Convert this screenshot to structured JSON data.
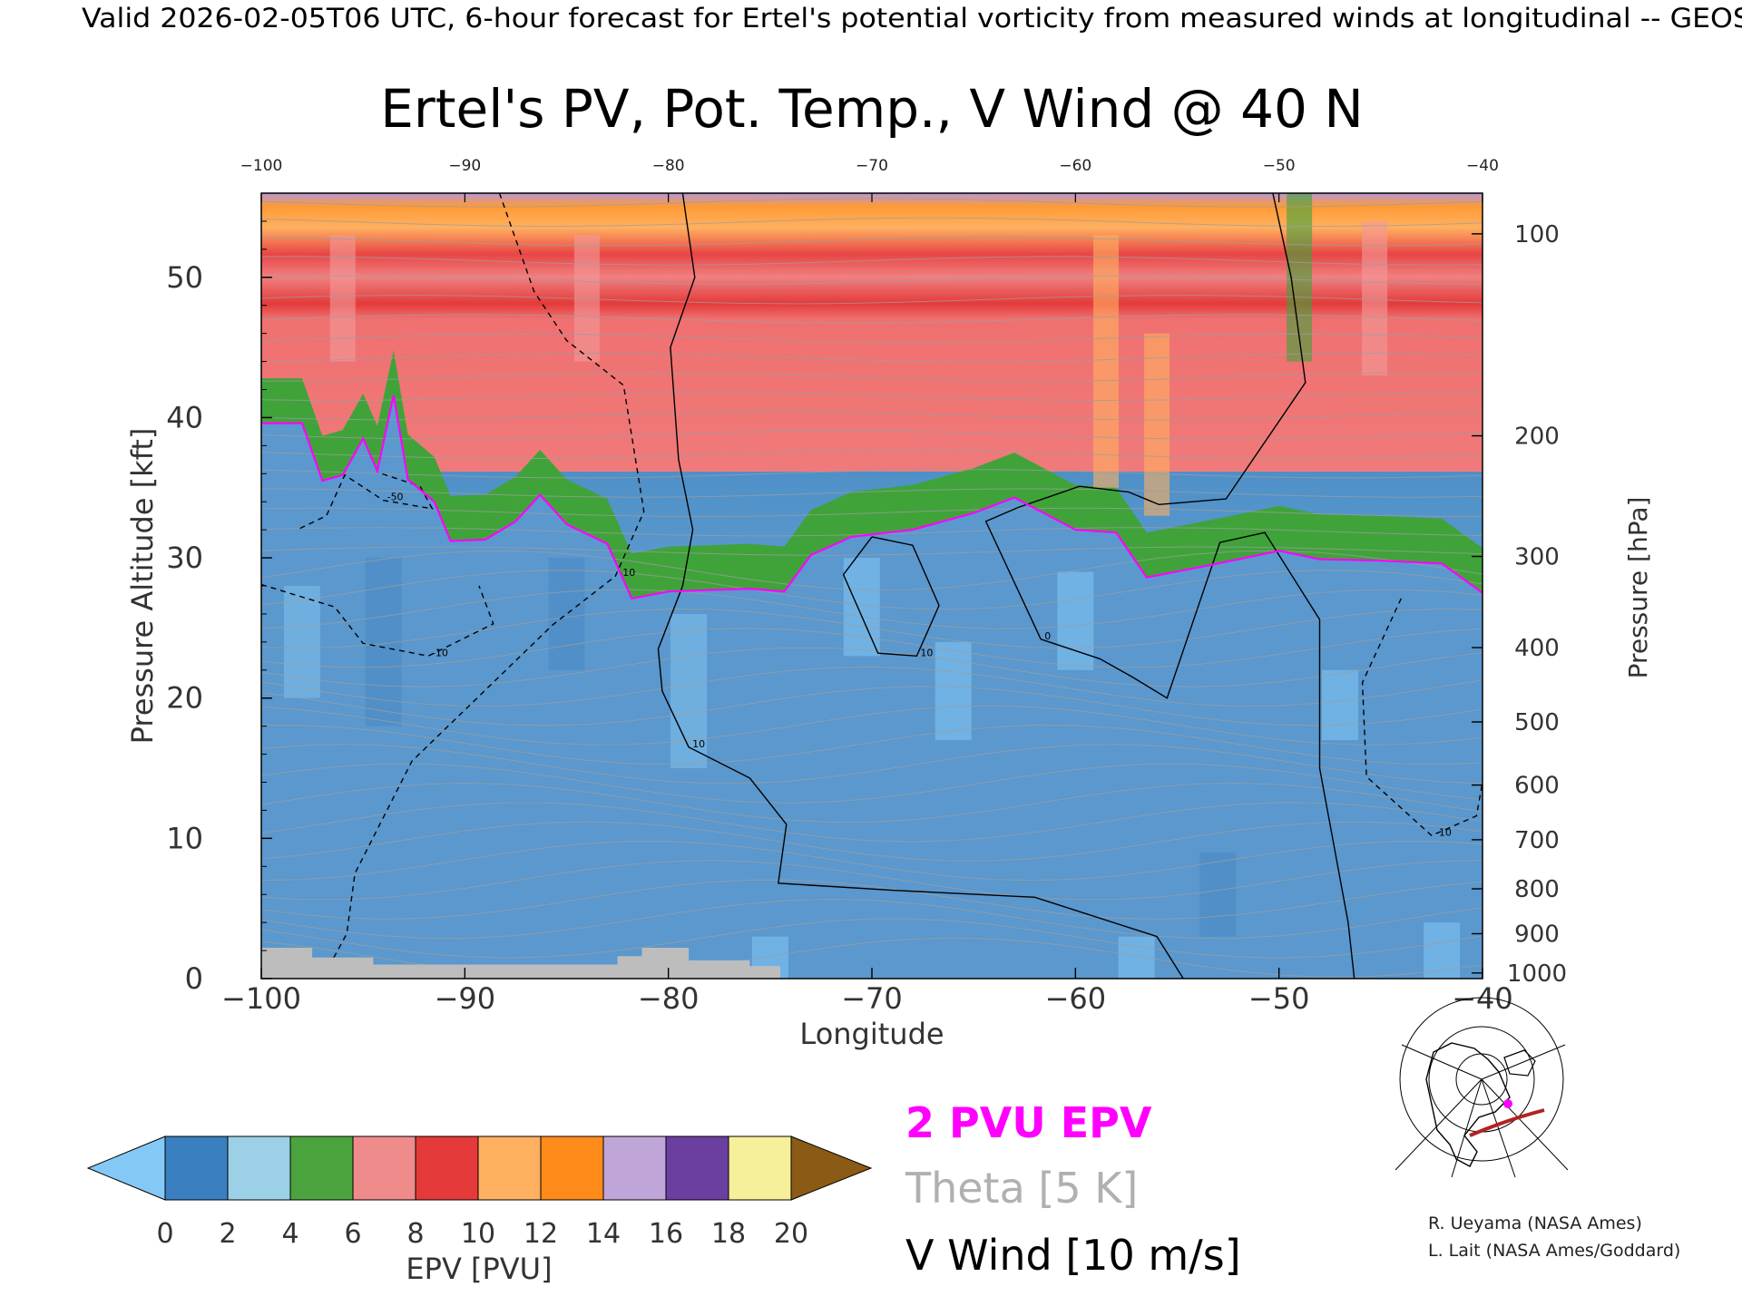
{
  "banner": "Valid 2026-02-05T06 UTC, 6-hour forecast for Ertel's potential vorticity from measured winds at longitudinal -- GEOS",
  "chart_data": {
    "type": "heatmap",
    "title": "Ertel's PV, Pot. Temp., V Wind @ 40 N",
    "xlabel": "Longitude",
    "ylabel_left": "Pressure Altitude [kft]",
    "ylabel_right": "Pressure [hPa]",
    "xlim": [
      -100,
      -40
    ],
    "ylim": [
      0,
      56
    ],
    "x_ticks": [
      -100,
      -90,
      -80,
      -70,
      -60,
      -50,
      -40
    ],
    "x_tick_labels": [
      "−100",
      "−90",
      "−80",
      "−70",
      "−60",
      "−50",
      "−40"
    ],
    "top_tick_labels": [
      "−100",
      "−90",
      "−80",
      "−70",
      "−60",
      "−50",
      "−40"
    ],
    "y_ticks": [
      0,
      10,
      20,
      30,
      40,
      50
    ],
    "y_tick_labels": [
      "0",
      "10",
      "20",
      "30",
      "40",
      "50"
    ],
    "pressure_levels": [
      {
        "label": "100",
        "kft": 53.1
      },
      {
        "label": "200",
        "kft": 38.7
      },
      {
        "label": "300",
        "kft": 30.1
      },
      {
        "label": "400",
        "kft": 23.6
      },
      {
        "label": "500",
        "kft": 18.3
      },
      {
        "label": "600",
        "kft": 13.8
      },
      {
        "label": "700",
        "kft": 9.9
      },
      {
        "label": "800",
        "kft": 6.4
      },
      {
        "label": "900",
        "kft": 3.2
      },
      {
        "label": "1000",
        "kft": 0.4
      }
    ],
    "colorbar": {
      "label": "EPV [PVU]",
      "ticks": [
        "0",
        "2",
        "4",
        "6",
        "8",
        "10",
        "12",
        "14",
        "16",
        "18",
        "20"
      ],
      "colors": [
        "#3a7fc0",
        "#9bd0e6",
        "#4ba33e",
        "#f08b8b",
        "#e43a3a",
        "#ffb060",
        "#ff8c1a",
        "#c0a6d8",
        "#6b3fa0",
        "#f6f09a"
      ],
      "under_color": "#84c9f5",
      "over_color": "#8b5a14"
    },
    "tropopause_2pvu": [
      [
        -100,
        39.6
      ],
      [
        -98,
        39.6
      ],
      [
        -97,
        35.5
      ],
      [
        -96,
        35.9
      ],
      [
        -95,
        38.5
      ],
      [
        -94.3,
        36.2
      ],
      [
        -93.5,
        41.6
      ],
      [
        -92.8,
        35.6
      ],
      [
        -91.5,
        34.0
      ],
      [
        -90.7,
        31.2
      ],
      [
        -89,
        31.3
      ],
      [
        -87.5,
        32.6
      ],
      [
        -86.3,
        34.5
      ],
      [
        -85,
        32.4
      ],
      [
        -83,
        31.0
      ],
      [
        -81.8,
        27.1
      ],
      [
        -80,
        27.6
      ],
      [
        -76,
        27.8
      ],
      [
        -74.3,
        27.6
      ],
      [
        -73,
        30.2
      ],
      [
        -71,
        31.5
      ],
      [
        -68,
        32.0
      ],
      [
        -65,
        33.2
      ],
      [
        -63,
        34.3
      ],
      [
        -60,
        32.0
      ],
      [
        -58,
        31.8
      ],
      [
        -56.5,
        28.6
      ],
      [
        -53,
        29.6
      ],
      [
        -50,
        30.5
      ],
      [
        -48,
        29.9
      ],
      [
        -45,
        29.8
      ],
      [
        -42,
        29.6
      ],
      [
        -40,
        27.5
      ]
    ],
    "v_wind_contours": [
      {
        "label": "10",
        "points": [
          [
            -79.3,
            56
          ],
          [
            -78.7,
            50
          ],
          [
            -79.9,
            45
          ],
          [
            -79.5,
            37
          ],
          [
            -78.8,
            32
          ],
          [
            -79.3,
            28
          ],
          [
            -80.5,
            23.5
          ],
          [
            -80.3,
            20.5
          ],
          [
            -79,
            16.5
          ],
          [
            -76,
            14.3
          ],
          [
            -74.2,
            11
          ],
          [
            -74.6,
            6.8
          ],
          [
            -69,
            6.3
          ],
          [
            -62,
            5.8
          ],
          [
            -56,
            3.0
          ],
          [
            -54.7,
            0
          ]
        ]
      },
      {
        "label": "0",
        "points": [
          [
            -50.3,
            56
          ],
          [
            -49.4,
            50
          ],
          [
            -48.7,
            42.5
          ],
          [
            -52.6,
            34.2
          ],
          [
            -55.9,
            33.8
          ],
          [
            -57.4,
            34.7
          ],
          [
            -59.8,
            35.1
          ],
          [
            -62.8,
            33.6
          ],
          [
            -64.4,
            32.6
          ],
          [
            -61.7,
            24.2
          ],
          [
            -58.8,
            22.8
          ],
          [
            -57.2,
            21.5
          ],
          [
            -55.5,
            20.0
          ],
          [
            -52.9,
            31.1
          ],
          [
            -50.7,
            31.8
          ],
          [
            -48.0,
            25.6
          ],
          [
            -48.0,
            15.0
          ],
          [
            -46.6,
            4.0
          ],
          [
            -46.3,
            0
          ]
        ]
      },
      {
        "label": "10",
        "points": [
          [
            -70,
            31.5
          ],
          [
            -71.4,
            28.8
          ],
          [
            -69.7,
            23.2
          ],
          [
            -67.8,
            23.0
          ],
          [
            -66.7,
            26.6
          ],
          [
            -68.0,
            30.9
          ],
          [
            -70,
            31.5
          ]
        ]
      },
      {
        "label": "-10",
        "points": [
          [
            -88.3,
            56
          ],
          [
            -86.6,
            49
          ],
          [
            -85,
            45.5
          ],
          [
            -82.2,
            42.3
          ],
          [
            -81.2,
            33.3
          ],
          [
            -82.6,
            28.7
          ],
          [
            -85.7,
            25.2
          ],
          [
            -92.6,
            15.5
          ],
          [
            -95.4,
            7.5
          ],
          [
            -95.8,
            3.2
          ],
          [
            -97.0,
            0
          ]
        ]
      },
      {
        "label": "-50",
        "points": [
          [
            -98.1,
            32.1
          ],
          [
            -96.8,
            33.0
          ],
          [
            -95.9,
            35.9
          ],
          [
            -94.0,
            34.1
          ],
          [
            -91.6,
            33.5
          ],
          [
            -92.2,
            35.1
          ],
          [
            -94.3,
            36.1
          ]
        ]
      },
      {
        "label": "-10",
        "points": [
          [
            -100,
            28.1
          ],
          [
            -96.4,
            26.5
          ],
          [
            -95.0,
            23.9
          ],
          [
            -91.8,
            23.0
          ],
          [
            -88.6,
            25.3
          ],
          [
            -89.3,
            28.0
          ]
        ]
      },
      {
        "label": "-10",
        "points": [
          [
            -44.0,
            27.1
          ],
          [
            -45.9,
            21.1
          ],
          [
            -45.7,
            14.4
          ],
          [
            -42.5,
            10.2
          ],
          [
            -40.3,
            11.6
          ],
          [
            -40.0,
            14.0
          ]
        ]
      }
    ],
    "theta_levels": [
      "270",
      "280",
      "290",
      "300",
      "310",
      "320",
      "330",
      "340",
      "350",
      "360",
      "370",
      "380",
      "390",
      "400",
      "410",
      "420"
    ]
  },
  "legend": {
    "pv_label": "2 PVU EPV",
    "theta_label": "Theta [5 K]",
    "wind_label": "V Wind [10 m/s]",
    "pv_color": "#ff00ff",
    "theta_color": "#b0b0b0",
    "wind_color": "#000000"
  },
  "credits": [
    "R. Ueyama (NASA Ames)",
    "L. Lait (NASA Ames/Goddard)"
  ]
}
